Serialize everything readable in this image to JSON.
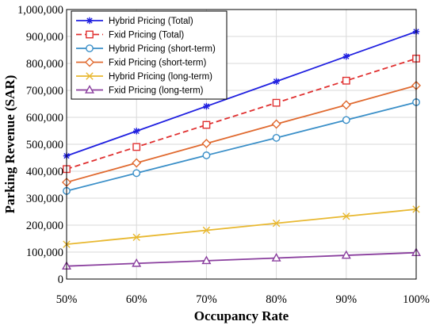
{
  "chart_data": {
    "type": "line",
    "categories": [
      "50%",
      "60%",
      "70%",
      "80%",
      "90%",
      "100%"
    ],
    "xlabel": "Occupancy Rate",
    "ylabel": "Parking Revenue (SAR)",
    "ylim": [
      0,
      1000000
    ],
    "yticks": [
      0,
      100000,
      200000,
      300000,
      400000,
      500000,
      600000,
      700000,
      800000,
      900000,
      1000000
    ],
    "ytick_labels": [
      "0",
      "100,000",
      "200,000",
      "300,000",
      "400,000",
      "500,000",
      "600,000",
      "700,000",
      "800,000",
      "900,000",
      "1,000,000"
    ],
    "grid": true,
    "legend_position": "top-left",
    "series": [
      {
        "name": "Hybrid Pricing (Total)",
        "values": [
          457000,
          549000,
          641000,
          733000,
          826000,
          918000
        ],
        "color": "#2020e0",
        "dash": "solid",
        "marker": "star"
      },
      {
        "name": "Fxid Pricing (Total)",
        "values": [
          408000,
          490000,
          572000,
          654000,
          736000,
          818000
        ],
        "color": "#e03030",
        "dash": "dashed",
        "marker": "square"
      },
      {
        "name": "Hybrid Pricing (short-term)",
        "values": [
          327000,
          393000,
          459000,
          524000,
          590000,
          656000
        ],
        "color": "#3a8fc8",
        "dash": "solid",
        "marker": "circle"
      },
      {
        "name": "Fxid Pricing (short-term)",
        "values": [
          359000,
          431000,
          503000,
          575000,
          646000,
          718000
        ],
        "color": "#e06a30",
        "dash": "solid",
        "marker": "diamond"
      },
      {
        "name": "Hybrid Pricing (long-term)",
        "values": [
          129000,
          155000,
          181000,
          207000,
          233000,
          259000
        ],
        "color": "#e8b830",
        "dash": "solid",
        "marker": "x"
      },
      {
        "name": "Fxid Pricing (long-term)",
        "values": [
          48000,
          58000,
          68000,
          78000,
          88000,
          98000
        ],
        "color": "#8a3f9e",
        "dash": "solid",
        "marker": "triangle"
      }
    ]
  }
}
